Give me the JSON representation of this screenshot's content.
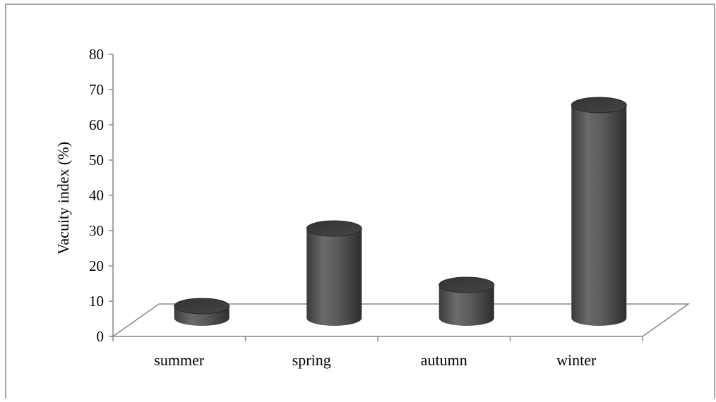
{
  "chart_data": {
    "type": "bar",
    "categories": [
      "summer",
      "spring",
      "autumn",
      "winter"
    ],
    "values": [
      15,
      37,
      21,
      72
    ],
    "title": "",
    "xlabel": "",
    "ylabel": "Vacuity index (%)",
    "ylim": [
      0,
      80
    ],
    "yticks": [
      0,
      10,
      20,
      30,
      40,
      50,
      60,
      70,
      80
    ],
    "grid": false,
    "legend": "none",
    "style": "3d-cylinder",
    "bar_color": "#555555",
    "line_color": "#888888"
  }
}
